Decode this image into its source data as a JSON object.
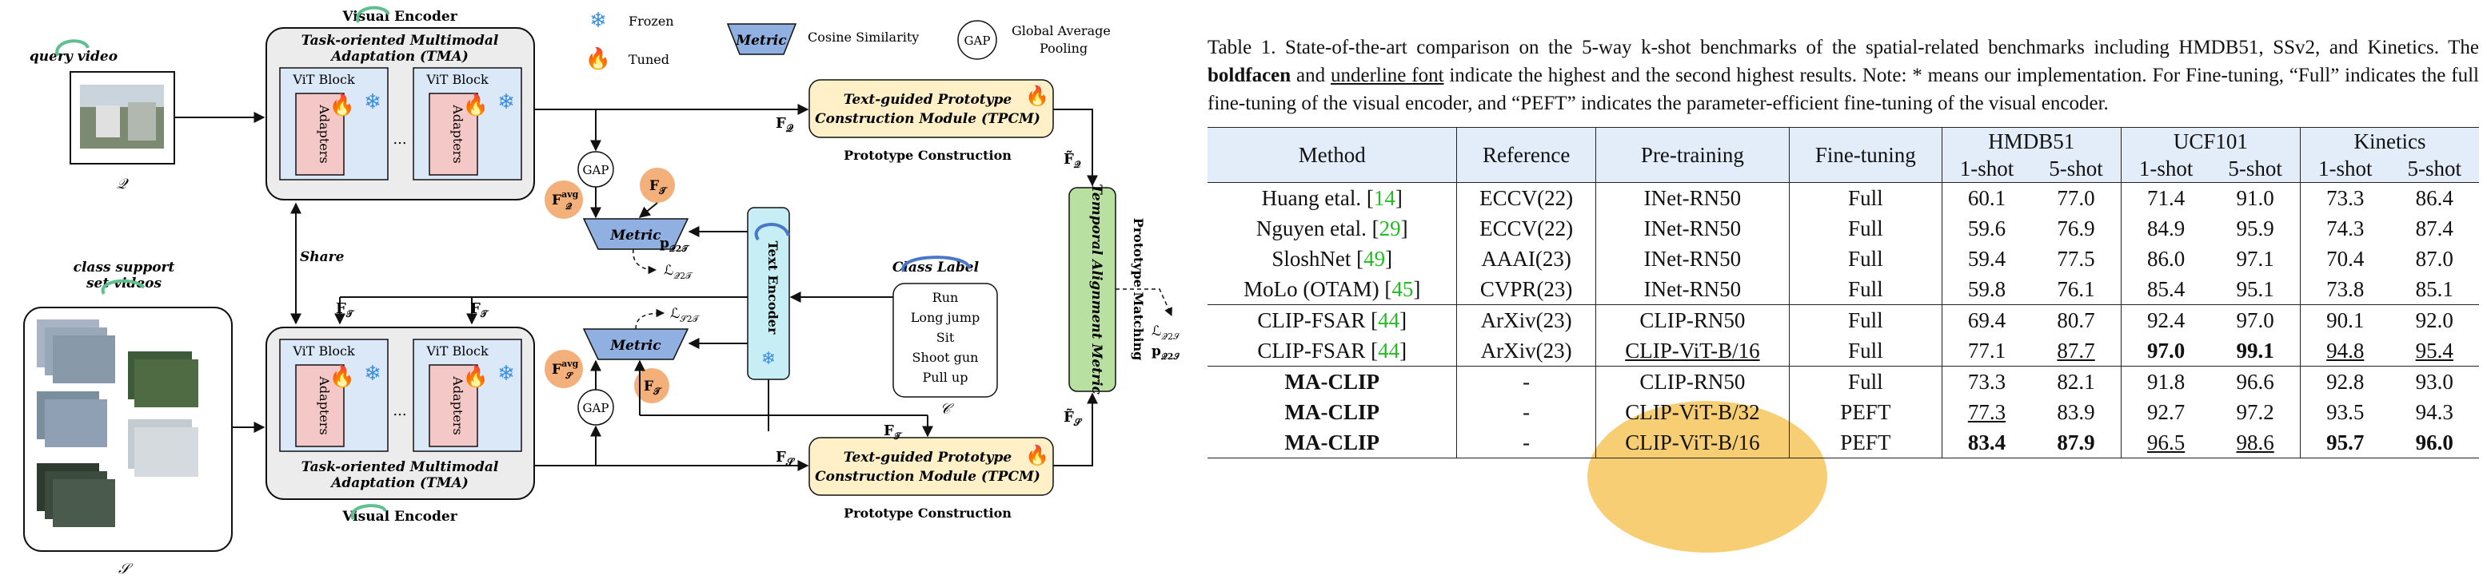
{
  "diagram": {
    "query_video_label": "query video",
    "query_symbol": "𝒬",
    "support_label_1": "class support",
    "support_label_2": "set videos",
    "support_symbol": "𝒮",
    "share_label": "Share",
    "visual_encoder_label": "Visual Encoder",
    "tma_label_1": "Task-oriented Multimodal",
    "tma_label_2": "Adaptation (TMA)",
    "vit_block_label": "ViT Block",
    "adapters_label": "Adapters",
    "ellipsis": "...",
    "legend_frozen": "Frozen",
    "legend_tuned": "Tuned",
    "legend_metric_shape": "Metric",
    "legend_cosine": "Cosine Similarity",
    "legend_gap_shape": "GAP",
    "legend_gap_1": "Global Average",
    "legend_gap_2": "Pooling",
    "tpcm_label_1": "Text-guided Prototype",
    "tpcm_label_2": "Construction Module (TPCM)",
    "prototype_construction": "Prototype Construction",
    "gap_label": "GAP",
    "metric_label": "Metric",
    "text_encoder_label": "Text Encoder",
    "class_label_title": "Class Label",
    "class_labels": [
      "Run",
      "Long jump",
      "Sit",
      "Shoot gun",
      "Pull up"
    ],
    "class_symbol": "𝒞",
    "tam_label": "Temporal Alignment Metric",
    "prototype_matching": "Prototype Matching",
    "f_q": "F",
    "f_q_sub": "𝒬",
    "f_t": "F",
    "f_t_sub": "𝒯",
    "f_s": "F",
    "f_s_sub": "𝒮",
    "fq_avg": "F",
    "fq_avg_sup": "avg",
    "fq_avg_sub": "𝒬",
    "fs_avg_sup": "avg",
    "fs_avg_sub": "𝒮",
    "p_q2t": "p",
    "p_q2t_sub": "𝒬2𝒯",
    "l_q2t": "ℒ",
    "l_q2t_sub": "𝒬2𝒯",
    "l_s2t": "ℒ",
    "l_s2t_sub": "𝒮2𝒯",
    "l_q2s": "ℒ",
    "l_q2s_sub": "𝒬2𝒮",
    "p_q2s": "p",
    "p_q2s_sub": "𝒬2𝒮",
    "fq_tilde": "F̃",
    "fs_tilde": "F̃",
    "colors": {
      "tma_bg": "#ececec",
      "vit_bg": "#dbe8f7",
      "adapter_bg": "#f5c8c8",
      "tpcm_bg": "#fff0c8",
      "text_enc_bg": "#c8eef5",
      "tam_bg": "#b8e0a0",
      "metric_bg": "#8fb0e0",
      "orange": "#f4b07a",
      "green_mark": "#5fbf8f",
      "blue_mark": "#4a78c8",
      "flame": "#e8221c",
      "snow": "#3a8ee0"
    }
  },
  "table": {
    "caption_parts": {
      "p1": "Table 1. State-of-the-art comparison on the 5-way k-shot benchmarks of the spatial-related benchmarks including HMDB51, SSv2, and Kinetics. The ",
      "bold": "boldfacen",
      "p2": " and ",
      "underline": "underline font",
      "p3": " indicate the highest and the second highest results. Note: * means our implementation. For Fine-tuning, “Full” indicates the full fine-tuning of the visual encoder, and “PEFT” indicates the parameter-efficient fine-tuning of the visual encoder."
    },
    "headers": {
      "method": "Method",
      "reference": "Reference",
      "pretraining": "Pre-training",
      "finetuning": "Fine-tuning",
      "hmdb": "HMDB51",
      "ucf": "UCF101",
      "kinetics": "Kinetics",
      "one_shot": "1-shot",
      "five_shot": "5-shot"
    },
    "groups": [
      [
        {
          "method": "Huang etal. [",
          "cite": "14",
          "ref": "ECCV(22)",
          "pre": "INet-RN50",
          "ft": "Full",
          "v": [
            "60.1",
            "77.0",
            "71.4",
            "91.0",
            "73.3",
            "86.4"
          ]
        },
        {
          "method": "Nguyen etal. [",
          "cite": "29",
          "ref": "ECCV(22)",
          "pre": "INet-RN50",
          "ft": "Full",
          "v": [
            "59.6",
            "76.9",
            "84.9",
            "95.9",
            "74.3",
            "87.4"
          ]
        },
        {
          "method": "SloshNet [",
          "cite": "49",
          "ref": "AAAI(23)",
          "pre": "INet-RN50",
          "ft": "Full",
          "v": [
            "59.4",
            "77.5",
            "86.0",
            "97.1",
            "70.4",
            "87.0"
          ]
        },
        {
          "method": "MoLo (OTAM) [",
          "cite": "45",
          "ref": "CVPR(23)",
          "pre": "INet-RN50",
          "ft": "Full",
          "v": [
            "59.8",
            "76.1",
            "85.4",
            "95.1",
            "73.8",
            "85.1"
          ]
        }
      ],
      [
        {
          "method": "CLIP-FSAR [",
          "cite": "44",
          "ref": "ArXiv(23)",
          "pre": "CLIP-RN50",
          "ft": "Full",
          "v": [
            "69.4",
            "80.7",
            "92.4",
            "97.0",
            "90.1",
            "92.0"
          ]
        },
        {
          "method": "CLIP-FSAR [",
          "cite": "44",
          "ref": "ArXiv(23)",
          "pre": "CLIP-ViT-B/16",
          "ft": "Full",
          "v": [
            "77.1",
            "87.7",
            "97.0",
            "99.1",
            "94.8",
            "95.4"
          ]
        }
      ],
      [
        {
          "method": "MA-CLIP",
          "cite": "",
          "ref": "-",
          "pre": "CLIP-RN50",
          "ft": "Full",
          "v": [
            "73.3",
            "82.1",
            "91.8",
            "96.6",
            "92.8",
            "93.0"
          ]
        },
        {
          "method": "MA-CLIP",
          "cite": "",
          "ref": "-",
          "pre": "CLIP-ViT-B/32",
          "ft": "PEFT",
          "v": [
            "77.3",
            "83.9",
            "92.7",
            "97.2",
            "93.5",
            "94.3"
          ]
        },
        {
          "method": "MA-CLIP",
          "cite": "",
          "ref": "-",
          "pre": "CLIP-ViT-B/16",
          "ft": "PEFT",
          "v": [
            "83.4",
            "87.9",
            "96.5",
            "98.6",
            "95.7",
            "96.0"
          ]
        }
      ]
    ]
  }
}
